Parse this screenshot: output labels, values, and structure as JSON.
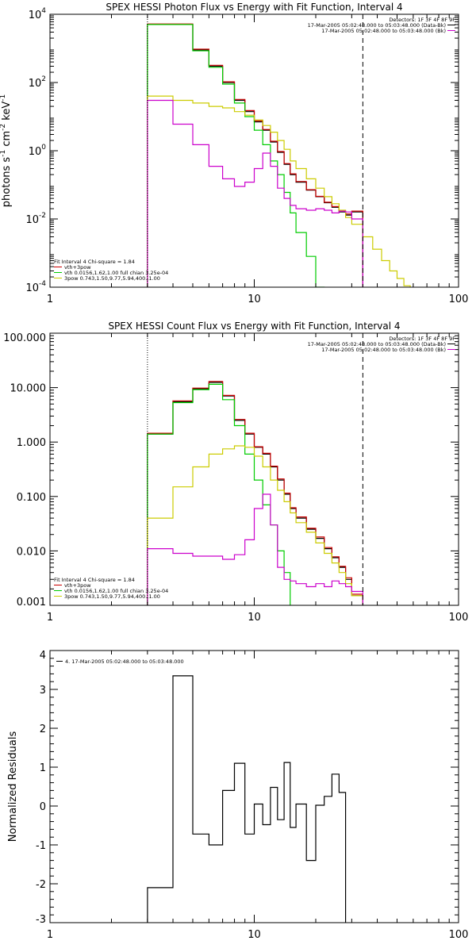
{
  "figure": {
    "colors": {
      "black": "#000000",
      "red": "#cc0000",
      "green": "#00cc00",
      "magenta": "#cc00cc",
      "yellow": "#cccc00",
      "orange": "#ff9900"
    }
  },
  "chart_data": [
    {
      "id": "photon",
      "type": "line",
      "title": "SPEX HESSI Photon Flux vs Energy with Fit Function, Interval 4",
      "xlabel": "",
      "ylabel": "photons s-1 cm-2 keV-1",
      "xscale": "log",
      "yscale": "log",
      "xlim": [
        1,
        100
      ],
      "ylim": [
        0.0001,
        10000
      ],
      "xticks": [
        {
          "v": 1,
          "label": "1"
        },
        {
          "v": 10,
          "label": "10"
        },
        {
          "v": 100,
          "label": "100"
        }
      ],
      "yticks": [
        {
          "v": 0.0001,
          "base": "10",
          "exp": "-4"
        },
        {
          "v": 0.01,
          "base": "10",
          "exp": "-2"
        },
        {
          "v": 1,
          "base": "10",
          "exp": "0"
        },
        {
          "v": 100,
          "base": "10",
          "exp": "2"
        },
        {
          "v": 10000,
          "base": "10",
          "exp": "4"
        }
      ],
      "vlines": [
        {
          "x": 3.0,
          "style": "dotted"
        },
        {
          "x": 34,
          "style": "dashed"
        }
      ],
      "legend_tr": {
        "header": "Detectors: 1F 3F 4F 8F 9F",
        "entries": [
          {
            "text": "17-Mar-2005 05:02:48.000 to 05:03:48.000 (Data-Bk)",
            "color": "#000000"
          },
          {
            "text": "17-Mar-2005 05:02:48.000 to 05:03:48.000 (Bk)",
            "color": "#cc00cc"
          }
        ]
      },
      "legend_bl": {
        "header": "Fit Interval 4   Chi-square = 1.84",
        "entries": [
          {
            "text": "vth+3pow",
            "color": "#cc0000"
          },
          {
            "text": "vth 0.0156,1.62,1.00  full chian 3.25e-04",
            "color": "#00cc00"
          },
          {
            "text": "3pow 0.743,1.50,9.77,5.94,400.,1.00",
            "color": "#cccc00"
          }
        ]
      },
      "series": [
        {
          "key": "data",
          "color": "#000000",
          "bins": [
            3,
            4,
            5,
            6,
            7,
            8,
            9,
            10,
            11,
            12,
            13,
            14,
            15,
            16,
            18,
            20,
            22,
            24,
            26,
            28,
            30,
            34
          ],
          "values": [
            5000,
            5000,
            900,
            300,
            100,
            30,
            14,
            7,
            4,
            1.8,
            0.9,
            0.4,
            0.2,
            0.12,
            0.07,
            0.045,
            0.03,
            0.022,
            0.016,
            0.013,
            0.016
          ]
        },
        {
          "key": "fit",
          "color": "#cc0000",
          "bins": [
            3,
            4,
            5,
            6,
            7,
            8,
            9,
            10,
            11,
            12,
            13,
            14,
            15,
            16,
            18,
            20,
            22,
            24,
            26,
            28,
            30,
            34
          ],
          "values": [
            5200,
            5200,
            950,
            320,
            105,
            32,
            15,
            7.5,
            4.2,
            1.9,
            0.95,
            0.42,
            0.21,
            0.125,
            0.072,
            0.046,
            0.031,
            0.023,
            0.017,
            0.014,
            0.017
          ]
        },
        {
          "key": "thermal",
          "color": "#00cc00",
          "bins": [
            3,
            4,
            5,
            6,
            7,
            8,
            9,
            10,
            11,
            12,
            13,
            14,
            15,
            16,
            18,
            20,
            22,
            24
          ],
          "values": [
            5000,
            5000,
            850,
            280,
            90,
            25,
            10,
            4,
            1.5,
            0.5,
            0.2,
            0.06,
            0.015,
            0.004,
            0.0008,
            0.0001,
            8e-05
          ]
        },
        {
          "key": "powerlaw",
          "color": "#cccc00",
          "bins": [
            3,
            4,
            5,
            6,
            7,
            8,
            9,
            10,
            11,
            12,
            13,
            14,
            15,
            16,
            18,
            20,
            22,
            24,
            26,
            28,
            30,
            34,
            38,
            42,
            46,
            50,
            54,
            58,
            64
          ],
          "values": [
            40,
            30,
            25,
            20,
            18,
            14,
            11,
            8,
            5.5,
            3.5,
            2,
            1.1,
            0.5,
            0.3,
            0.15,
            0.08,
            0.045,
            0.028,
            0.018,
            0.011,
            0.007,
            0.003,
            0.0013,
            0.0006,
            0.0003,
            0.00018,
            0.00011,
            7e-05
          ]
        },
        {
          "key": "background",
          "color": "#cc00cc",
          "bins": [
            3,
            4,
            5,
            6,
            7,
            8,
            9,
            10,
            11,
            12,
            13,
            14,
            15,
            16,
            18,
            20,
            22,
            24,
            26,
            28,
            30,
            34
          ],
          "values": [
            30,
            6,
            1.5,
            0.35,
            0.15,
            0.09,
            0.12,
            0.3,
            0.85,
            0.35,
            0.08,
            0.04,
            0.025,
            0.02,
            0.018,
            0.02,
            0.018,
            0.015,
            0.017,
            0.016,
            0.01
          ]
        }
      ]
    },
    {
      "id": "count",
      "type": "line",
      "title": "SPEX HESSI Count Flux vs Energy with Fit Function, Interval 4",
      "xlabel": "",
      "ylabel": "",
      "xscale": "log",
      "yscale": "log",
      "xlim": [
        1,
        100
      ],
      "ylim": [
        0.001,
        100
      ],
      "xticks": [
        {
          "v": 1,
          "label": "1"
        },
        {
          "v": 10,
          "label": "10"
        },
        {
          "v": 100,
          "label": "100"
        }
      ],
      "yticks": [
        {
          "v": 0.001,
          "label": "0.001"
        },
        {
          "v": 0.01,
          "label": "0.010"
        },
        {
          "v": 0.1,
          "label": "0.100"
        },
        {
          "v": 1,
          "label": "1.000"
        },
        {
          "v": 10,
          "label": "10.000"
        },
        {
          "v": 100,
          "label": "100.000"
        }
      ],
      "vlines": [
        {
          "x": 3.0,
          "style": "dotted"
        },
        {
          "x": 34,
          "style": "dashed"
        }
      ],
      "legend_tr": {
        "header": "Detectors: 1F 3F 4F 8F 9F",
        "entries": [
          {
            "text": "17-Mar-2005 05:02:48.000 to 05:03:48.000 (Data-Bk)",
            "color": "#000000"
          },
          {
            "text": "17-Mar-2005 05:02:48.000 to 05:03:48.000 (Bk)",
            "color": "#cc00cc"
          }
        ]
      },
      "legend_bl": {
        "header": "Fit Interval 4   Chi-square = 1.84",
        "entries": [
          {
            "text": "vth+3pow",
            "color": "#cc0000"
          },
          {
            "text": "vth 0.0156,1.62,1.00  full chian 3.25e-04",
            "color": "#00cc00"
          },
          {
            "text": "3pow 0.743,1.50,9.77,5.94,400.,1.00",
            "color": "#cccc00"
          }
        ]
      },
      "series": [
        {
          "key": "data",
          "color": "#000000",
          "bins": [
            3,
            4,
            5,
            6,
            7,
            8,
            9,
            10,
            11,
            12,
            13,
            14,
            15,
            16,
            18,
            20,
            22,
            24,
            26,
            28,
            30,
            34
          ],
          "values": [
            1.4,
            5.5,
            9.5,
            12.5,
            7,
            2.5,
            1.4,
            0.8,
            0.6,
            0.35,
            0.2,
            0.11,
            0.06,
            0.04,
            0.025,
            0.017,
            0.011,
            0.0075,
            0.005,
            0.003,
            0.0015
          ]
        },
        {
          "key": "fit",
          "color": "#cc0000",
          "bins": [
            3,
            4,
            5,
            6,
            7,
            8,
            9,
            10,
            11,
            12,
            13,
            14,
            15,
            16,
            18,
            20,
            22,
            24,
            26,
            28,
            30,
            34
          ],
          "values": [
            1.45,
            5.7,
            9.8,
            13,
            7.2,
            2.6,
            1.45,
            0.82,
            0.62,
            0.36,
            0.21,
            0.115,
            0.062,
            0.042,
            0.026,
            0.018,
            0.0115,
            0.0078,
            0.0052,
            0.0032,
            0.0016
          ]
        },
        {
          "key": "thermal",
          "color": "#00cc00",
          "bins": [
            3,
            4,
            5,
            6,
            7,
            8,
            9,
            10,
            11,
            12,
            13,
            14,
            15
          ],
          "values": [
            1.4,
            5.3,
            9.2,
            11.5,
            6,
            2,
            0.6,
            0.2,
            0.07,
            0.03,
            0.01,
            0.004
          ]
        },
        {
          "key": "powerlaw",
          "color": "#cccc00",
          "bins": [
            3,
            4,
            5,
            6,
            7,
            8,
            9,
            10,
            11,
            12,
            13,
            14,
            15,
            16,
            18,
            20,
            22,
            24,
            26,
            28,
            30,
            34
          ],
          "values": [
            0.04,
            0.15,
            0.35,
            0.6,
            0.75,
            0.85,
            0.8,
            0.55,
            0.35,
            0.2,
            0.13,
            0.08,
            0.05,
            0.033,
            0.022,
            0.014,
            0.009,
            0.006,
            0.004,
            0.0025,
            0.0015
          ]
        },
        {
          "key": "background",
          "color": "#cc00cc",
          "bins": [
            3,
            4,
            5,
            6,
            7,
            8,
            9,
            10,
            11,
            12,
            13,
            14,
            15,
            16,
            18,
            20,
            22,
            24,
            26,
            28,
            30,
            34
          ],
          "values": [
            0.011,
            0.009,
            0.008,
            0.008,
            0.007,
            0.0085,
            0.016,
            0.06,
            0.11,
            0.03,
            0.005,
            0.003,
            0.0028,
            0.0025,
            0.0022,
            0.0025,
            0.0022,
            0.0028,
            0.0025,
            0.0022,
            0.0018
          ]
        }
      ]
    },
    {
      "id": "resid",
      "type": "line",
      "title": "",
      "xlabel": "",
      "ylabel": "Normalized Residuals",
      "xscale": "log",
      "yscale": "linear",
      "xlim": [
        1,
        100
      ],
      "ylim": [
        -3,
        4
      ],
      "xticks": [
        {
          "v": 1,
          "label": "1"
        },
        {
          "v": 10,
          "label": "10"
        },
        {
          "v": 100,
          "label": "100"
        }
      ],
      "yticks": [
        {
          "v": -3,
          "label": "-3"
        },
        {
          "v": -2,
          "label": "-2"
        },
        {
          "v": -1,
          "label": "-1"
        },
        {
          "v": 0,
          "label": "0"
        },
        {
          "v": 1,
          "label": "1"
        },
        {
          "v": 2,
          "label": "2"
        },
        {
          "v": 3,
          "label": "3"
        },
        {
          "v": 4,
          "label": "4"
        }
      ],
      "vlines": [],
      "legend_tr": null,
      "legend_bl": null,
      "legend_tl": {
        "entries": [
          {
            "text": "4. 17-Mar-2005 05:02:48.000 to 05:03:48.000",
            "color": "#000000"
          }
        ]
      },
      "series": [
        {
          "key": "residuals",
          "color": "#000000",
          "bins": [
            3,
            4,
            5,
            6,
            7,
            8,
            9,
            10,
            11,
            12,
            13,
            14,
            15,
            16,
            18,
            20,
            22,
            24,
            26,
            28,
            30,
            34
          ],
          "values": [
            -2.1,
            3.35,
            -0.72,
            -1.0,
            0.4,
            1.1,
            -0.72,
            0.05,
            -0.48,
            0.48,
            -0.35,
            1.12,
            -0.55,
            0.05,
            -1.4,
            0.02,
            0.25,
            0.82,
            0.35,
            -3.1,
            -3.1
          ]
        }
      ]
    }
  ]
}
